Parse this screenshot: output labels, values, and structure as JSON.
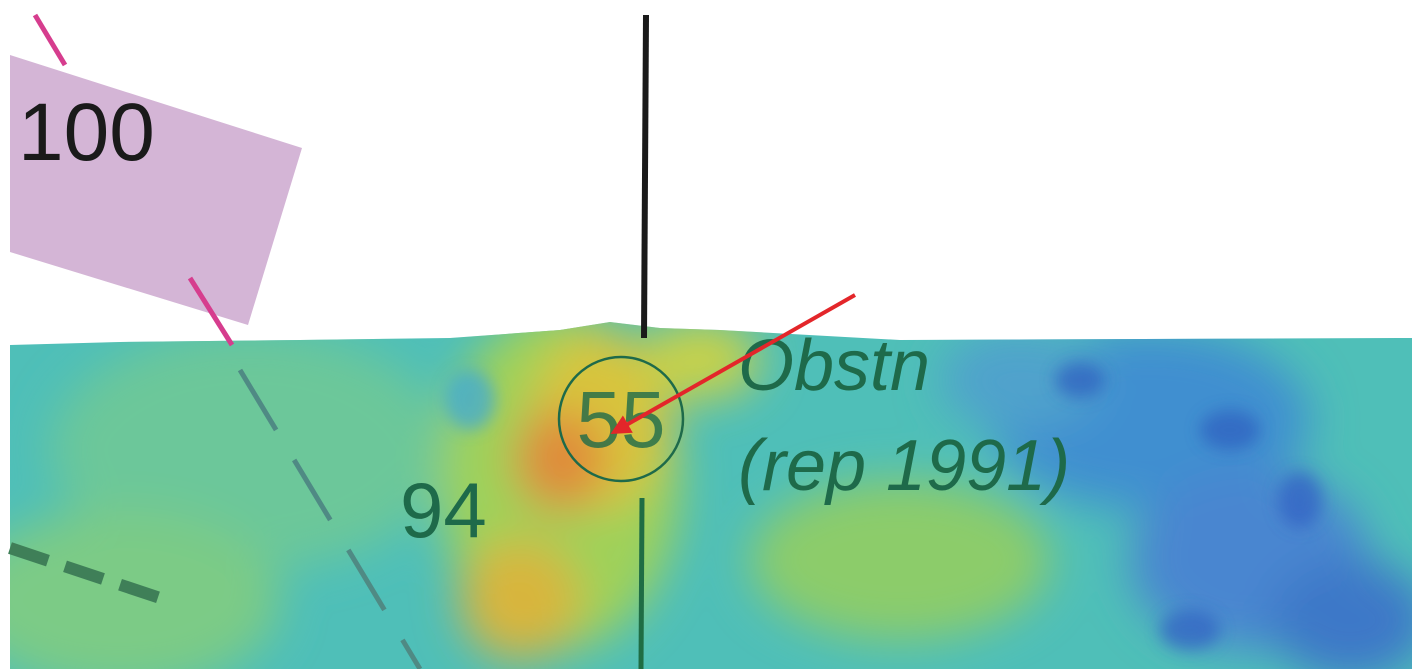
{
  "labels": {
    "depth_area": "100",
    "sounding": "94",
    "obstruction_depth": "55",
    "obstruction_label": "Obstn",
    "obstruction_note": "(rep 1991)"
  }
}
